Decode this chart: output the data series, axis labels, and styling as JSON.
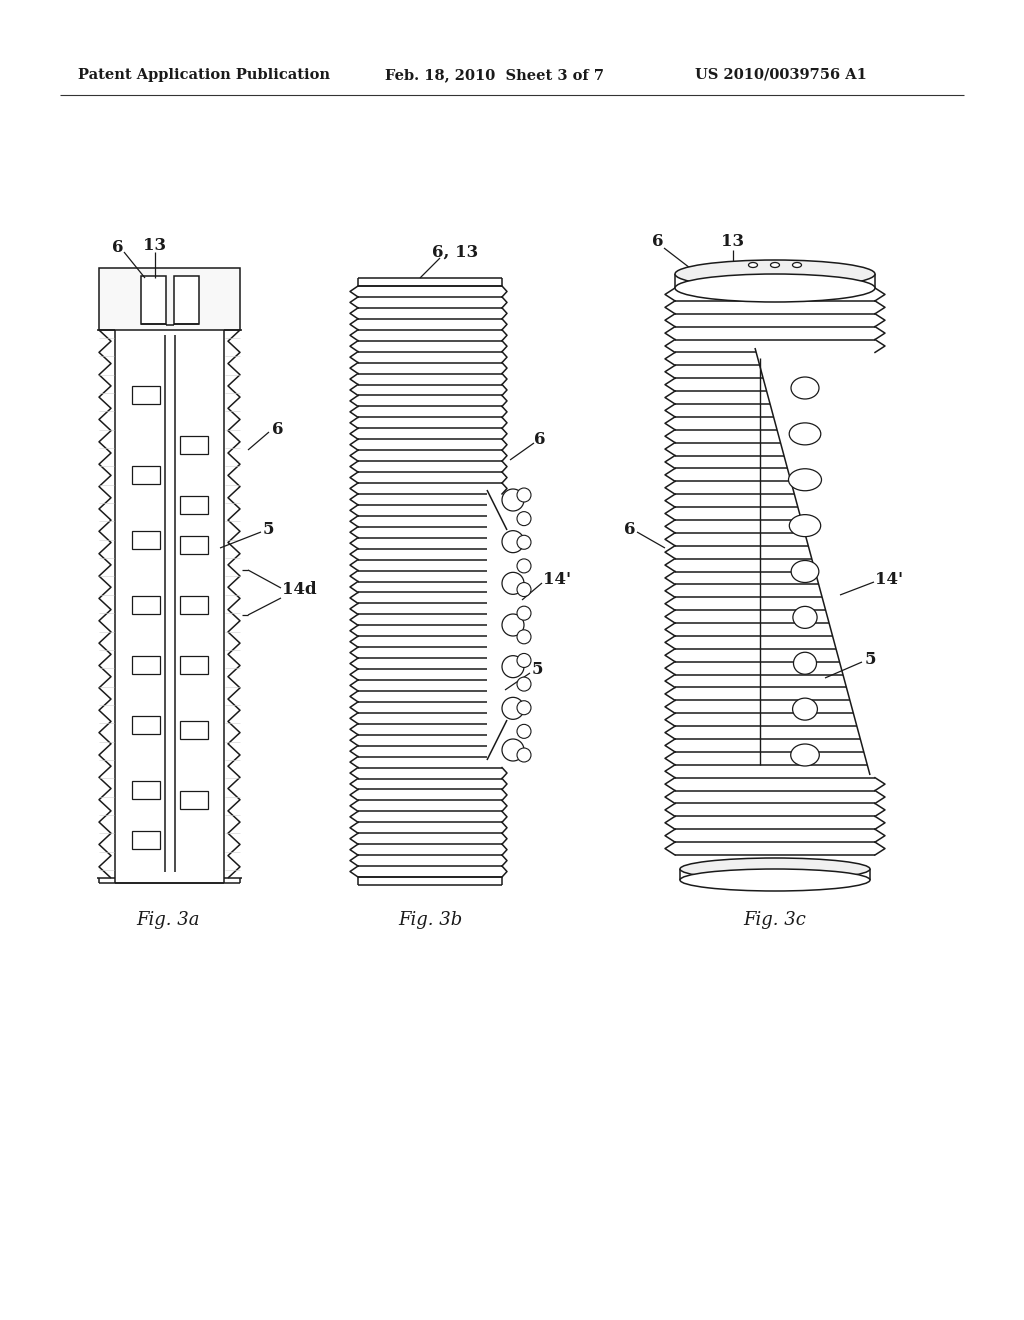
{
  "bg_color": "#ffffff",
  "line_color": "#1a1a1a",
  "header_left": "Patent Application Publication",
  "header_center": "Feb. 18, 2010  Sheet 3 of 7",
  "header_right": "US 2010/0039756 A1",
  "fig_labels": [
    "Fig. 3a",
    "Fig. 3b",
    "Fig. 3c"
  ],
  "fig_label_fontsize": 13,
  "header_fontsize": 10.5,
  "label_fontsize": 12
}
